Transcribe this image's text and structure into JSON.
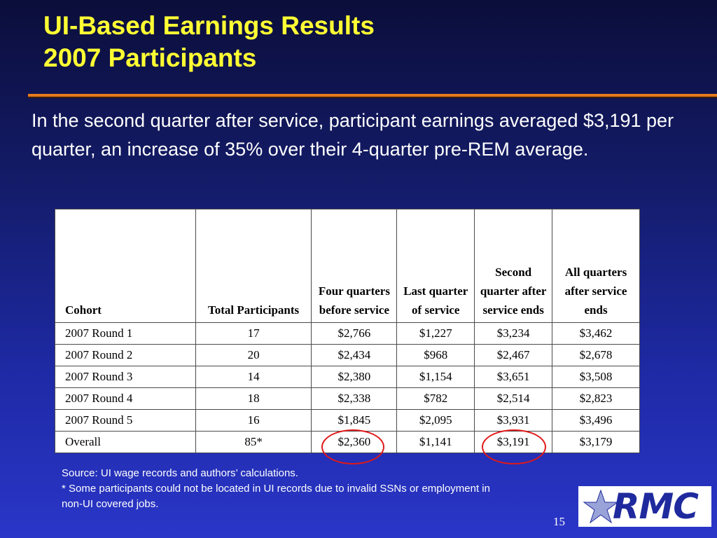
{
  "slide": {
    "title_line1": "UI-Based Earnings Results",
    "title_line2": "2007 Participants",
    "body": "In the second quarter after service, participant earnings averaged $3,191 per quarter, an increase of 35% over their 4-quarter pre-REM average.",
    "page_number": "15"
  },
  "table": {
    "headers": [
      "Cohort",
      "Total Participants",
      "Four quarters before service",
      "Last quarter of service",
      "Second quarter after service ends",
      "All quarters after service ends"
    ],
    "rows": [
      [
        "2007 Round 1",
        "17",
        "$2,766",
        "$1,227",
        "$3,234",
        "$3,462"
      ],
      [
        "2007 Round 2",
        "20",
        "$2,434",
        "$968",
        "$2,467",
        "$2,678"
      ],
      [
        "2007 Round 3",
        "14",
        "$2,380",
        "$1,154",
        "$3,651",
        "$3,508"
      ],
      [
        "2007 Round 4",
        "18",
        "$2,338",
        "$782",
        "$2,514",
        "$2,823"
      ],
      [
        "2007 Round 5",
        "16",
        "$1,845",
        "$2,095",
        "$3,931",
        "$3,496"
      ],
      [
        "Overall",
        "85*",
        "$2,360",
        "$1,141",
        "$3,191",
        "$3,179"
      ]
    ]
  },
  "footnotes": {
    "source": "Source: UI wage records and authors’ calculations.",
    "note": "* Some participants could not be located in UI records due to invalid SSNs or employment in non-UI covered jobs."
  },
  "logo": {
    "text": "RMC",
    "icon": "star-icon"
  },
  "colors": {
    "title": "#ffff33",
    "accent_rule": "#e67a1e",
    "highlight_circle": "#e01818",
    "logo_text": "#1f2a9e"
  }
}
